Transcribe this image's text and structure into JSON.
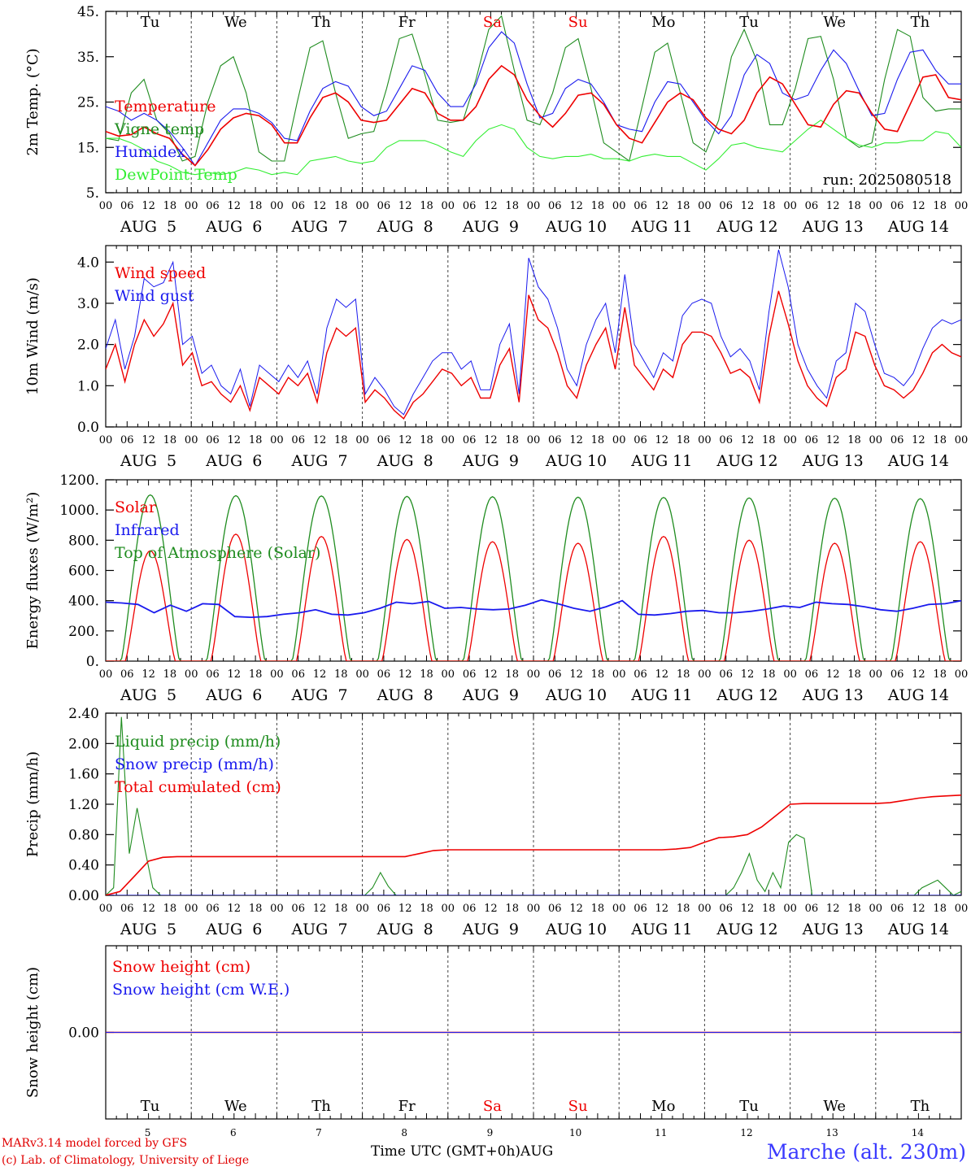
{
  "colors": {
    "red": "#ee0000",
    "green": "#1f8c1f",
    "blue": "#1a1aee",
    "light_green": "#33ee33",
    "station_blue": "#3a3aff"
  },
  "footer": {
    "credit1": "MARv3.14 model forced by GFS",
    "credit2": "(c) Lab. of Climatology, University of Liege",
    "time_label": "Time UTC (GMT+0h)AUG",
    "station": "Marche (alt. 230m)"
  },
  "chart_data": [
    {
      "type": "line",
      "ylabel": "2m Temp. (°C)",
      "ylim": [
        5,
        45
      ],
      "yticks": [
        "5.",
        "15.",
        "25.",
        "35.",
        "45."
      ],
      "annotation": "run: 2025080518",
      "weekdays": [
        "Tu",
        "We",
        "Th",
        "Fr",
        "Sa",
        "Su",
        "Mo",
        "Tu",
        "We",
        "Th"
      ],
      "weekend_days": [
        "Sa",
        "Su"
      ],
      "hour_ticks": [
        "00",
        "06",
        "12",
        "18"
      ],
      "date_labels": [
        "AUG  5",
        "AUG  6",
        "AUG  7",
        "AUG  8",
        "AUG  9",
        "AUG 10",
        "AUG 11",
        "AUG 12",
        "AUG 13",
        "AUG 14"
      ],
      "series": [
        {
          "name": "Temperature",
          "color": "#ee0000",
          "values": [
            18.5,
            17.5,
            17.8,
            19.5,
            18.0,
            17.0,
            13.5,
            11.0,
            14.5,
            19.0,
            21.5,
            22.5,
            22.0,
            20.0,
            16.0,
            16.0,
            21.5,
            26.0,
            27.0,
            25.0,
            21.0,
            20.5,
            21.0,
            24.5,
            28.0,
            27.0,
            22.5,
            21.0,
            21.0,
            24.0,
            30.0,
            33.0,
            31.0,
            25.5,
            22.0,
            19.5,
            22.5,
            26.5,
            27.0,
            24.5,
            20.0,
            17.0,
            16.0,
            20.5,
            25.0,
            27.0,
            25.5,
            21.5,
            19.0,
            18.0,
            21.0,
            27.0,
            30.5,
            29.0,
            24.5,
            20.0,
            19.5,
            24.5,
            27.5,
            27.0,
            22.5,
            19.0,
            18.5,
            24.5,
            30.5,
            31.0,
            26.0,
            25.5
          ]
        },
        {
          "name": "Vigne temp",
          "color": "#1f8c1f",
          "values": [
            17.0,
            16.5,
            27.0,
            30.0,
            21.0,
            18.0,
            12.0,
            13.0,
            25.0,
            33.0,
            35.0,
            27.0,
            14.0,
            12.0,
            12.0,
            25.0,
            37.0,
            38.5,
            27.0,
            17.0,
            18.0,
            18.5,
            28.0,
            39.0,
            40.0,
            31.0,
            21.0,
            20.5,
            21.0,
            30.0,
            41.0,
            44.0,
            32.0,
            21.0,
            20.0,
            27.0,
            37.0,
            39.0,
            28.0,
            16.0,
            14.0,
            12.0,
            24.0,
            36.0,
            38.0,
            27.0,
            16.0,
            14.0,
            21.0,
            35.0,
            41.0,
            34.0,
            20.0,
            20.0,
            28.0,
            39.0,
            39.5,
            30.0,
            17.0,
            15.0,
            16.0,
            30.0,
            41.0,
            39.5,
            26.0,
            23.0,
            23.5,
            23.5
          ]
        },
        {
          "name": "Humidex",
          "color": "#1a1aee",
          "values": [
            24.0,
            23.0,
            21.0,
            22.5,
            21.0,
            18.5,
            15.0,
            11.0,
            16.0,
            21.0,
            23.5,
            23.5,
            22.5,
            20.5,
            17.0,
            16.5,
            23.0,
            28.0,
            29.5,
            28.5,
            24.0,
            22.0,
            23.0,
            28.0,
            33.0,
            32.0,
            27.0,
            24.0,
            24.0,
            29.0,
            37.0,
            40.5,
            38.0,
            29.0,
            21.5,
            22.5,
            28.0,
            30.0,
            29.0,
            25.0,
            20.0,
            19.0,
            18.5,
            25.0,
            29.5,
            29.0,
            25.0,
            21.0,
            18.0,
            22.0,
            31.0,
            35.5,
            33.5,
            27.0,
            25.5,
            26.5,
            32.0,
            36.5,
            33.5,
            27.5,
            22.0,
            22.5,
            30.0,
            36.0,
            36.5,
            32.0,
            29.0,
            29.0
          ]
        },
        {
          "name": "DewPoint Temp",
          "color": "#33ee33",
          "values": [
            17.0,
            17.0,
            16.0,
            14.5,
            12.0,
            11.0,
            9.5,
            9.0,
            9.5,
            9.0,
            9.5,
            10.5,
            10.0,
            9.0,
            9.5,
            9.0,
            12.0,
            12.5,
            13.0,
            12.0,
            11.5,
            12.0,
            15.0,
            16.5,
            16.5,
            16.5,
            15.5,
            14.0,
            13.0,
            16.5,
            19.0,
            20.0,
            19.0,
            15.0,
            13.0,
            12.5,
            13.0,
            13.0,
            13.5,
            12.5,
            12.5,
            12.0,
            13.0,
            13.5,
            13.0,
            13.0,
            11.5,
            10.0,
            12.5,
            15.5,
            16.0,
            15.0,
            14.5,
            14.0,
            16.5,
            19.0,
            21.0,
            19.0,
            17.0,
            15.5,
            15.0,
            16.0,
            16.0,
            16.5,
            16.5,
            18.5,
            18.0,
            15.0
          ]
        }
      ]
    },
    {
      "type": "line",
      "ylabel": "10m Wind (m/s)",
      "ylim": [
        0,
        4.4
      ],
      "yticks": [
        "0.0",
        "1.0",
        "2.0",
        "3.0",
        "4.0"
      ],
      "hour_ticks": [
        "00",
        "06",
        "12",
        "18"
      ],
      "date_labels": [
        "AUG  5",
        "AUG  6",
        "AUG  7",
        "AUG  8",
        "AUG  9",
        "AUG 10",
        "AUG 11",
        "AUG 12",
        "AUG 13",
        "AUG 14"
      ],
      "series": [
        {
          "name": "Wind speed",
          "color": "#ee0000",
          "values": [
            1.4,
            2.0,
            1.1,
            2.0,
            2.6,
            2.2,
            2.5,
            3.0,
            1.5,
            1.8,
            1.0,
            1.1,
            0.8,
            0.6,
            1.0,
            0.4,
            1.2,
            1.0,
            0.8,
            1.2,
            1.0,
            1.3,
            0.6,
            1.8,
            2.4,
            2.2,
            2.4,
            0.6,
            0.9,
            0.7,
            0.4,
            0.2,
            0.6,
            0.8,
            1.1,
            1.4,
            1.3,
            1.0,
            1.2,
            0.7,
            0.7,
            1.5,
            1.9,
            0.6,
            3.2,
            2.6,
            2.4,
            1.8,
            1.0,
            0.7,
            1.5,
            2.0,
            2.4,
            1.4,
            2.9,
            1.5,
            1.2,
            0.9,
            1.4,
            1.2,
            2.0,
            2.3,
            2.3,
            2.2,
            1.8,
            1.3,
            1.4,
            1.2,
            0.6,
            2.2,
            3.3,
            2.5,
            1.6,
            1.0,
            0.7,
            0.5,
            1.2,
            1.4,
            2.3,
            2.2,
            1.5,
            1.0,
            0.9,
            0.7,
            0.9,
            1.3,
            1.8,
            2.0,
            1.8,
            1.7
          ]
        },
        {
          "name": "Wind gust",
          "color": "#1a1aee",
          "values": [
            1.9,
            2.6,
            1.4,
            2.2,
            3.6,
            3.4,
            3.5,
            4.0,
            2.0,
            2.2,
            1.3,
            1.5,
            1.0,
            0.8,
            1.4,
            0.5,
            1.5,
            1.3,
            1.1,
            1.5,
            1.2,
            1.6,
            0.8,
            2.4,
            3.1,
            2.9,
            3.1,
            0.8,
            1.2,
            0.9,
            0.5,
            0.3,
            0.8,
            1.2,
            1.6,
            1.8,
            1.8,
            1.4,
            1.6,
            0.9,
            0.9,
            2.0,
            2.5,
            0.8,
            4.1,
            3.4,
            3.1,
            2.4,
            1.4,
            1.0,
            2.0,
            2.6,
            3.0,
            1.8,
            3.7,
            2.0,
            1.6,
            1.2,
            1.8,
            1.6,
            2.7,
            3.0,
            3.1,
            3.0,
            2.2,
            1.7,
            1.9,
            1.6,
            0.9,
            2.8,
            4.3,
            3.4,
            2.0,
            1.4,
            1.0,
            0.7,
            1.6,
            1.8,
            3.0,
            2.8,
            2.0,
            1.3,
            1.2,
            1.0,
            1.3,
            1.9,
            2.4,
            2.6,
            2.5,
            2.6
          ]
        }
      ]
    },
    {
      "type": "line",
      "ylabel": "Energy fluxes (W/m²)",
      "ylim": [
        0,
        1200
      ],
      "yticks": [
        "0.",
        "200.",
        "400.",
        "600.",
        "800.",
        "1000.",
        "1200."
      ],
      "hour_ticks": [
        "00",
        "06",
        "12",
        "18"
      ],
      "date_labels": [
        "AUG  5",
        "AUG  6",
        "AUG  7",
        "AUG  8",
        "AUG  9",
        "AUG 10",
        "AUG 11",
        "AUG 12",
        "AUG 13",
        "AUG 14"
      ],
      "daily_peaks": {
        "solar": [
          730,
          840,
          825,
          805,
          790,
          780,
          825,
          800,
          780,
          790
        ],
        "toa_solar": [
          1100,
          1095,
          1093,
          1090,
          1088,
          1085,
          1083,
          1080,
          1078,
          1075
        ]
      },
      "series": [
        {
          "name": "Solar",
          "color": "#ee0000",
          "values": [
            0,
            0,
            0,
            80,
            500,
            780,
            300,
            760,
            450,
            70,
            0
          ]
        },
        {
          "name": "Infrared",
          "color": "#1a1aee",
          "values": [
            390,
            385,
            375,
            320,
            370,
            330,
            380,
            375,
            295,
            290,
            295,
            310,
            320,
            340,
            310,
            305,
            320,
            350,
            390,
            380,
            395,
            350,
            355,
            345,
            340,
            345,
            370,
            405,
            380,
            350,
            330,
            360,
            400,
            310,
            305,
            315,
            330,
            335,
            320,
            320,
            330,
            345,
            365,
            355,
            390,
            380,
            375,
            360,
            340,
            330,
            350,
            375,
            380,
            400
          ]
        },
        {
          "name": "Top of Atmosphere (Solar)",
          "color": "#1f8c1f",
          "values": [
            0,
            1100,
            0
          ]
        }
      ]
    },
    {
      "type": "line",
      "ylabel": "Precip (mm/h)",
      "ylim": [
        0,
        2.4
      ],
      "yticks": [
        "0.00",
        "0.40",
        "0.80",
        "1.20",
        "1.60",
        "2.00",
        "2.40"
      ],
      "hour_ticks": [
        "00",
        "06",
        "12",
        "18"
      ],
      "date_labels": [
        "AUG  5",
        "AUG  6",
        "AUG  7",
        "AUG  8",
        "AUG  9",
        "AUG 10",
        "AUG 11",
        "AUG 12",
        "AUG 13",
        "AUG 14"
      ],
      "series": [
        {
          "name": "Liquid precip (mm/h)",
          "color": "#1f8c1f",
          "values": [
            0,
            0.1,
            2.35,
            0.55,
            1.15,
            0.6,
            0.1,
            0,
            0,
            0,
            0,
            0,
            0,
            0,
            0,
            0,
            0,
            0,
            0,
            0,
            0,
            0,
            0,
            0,
            0,
            0,
            0,
            0,
            0,
            0,
            0,
            0,
            0,
            0,
            0.1,
            0.3,
            0.12,
            0,
            0,
            0,
            0,
            0,
            0,
            0,
            0,
            0,
            0,
            0,
            0,
            0,
            0,
            0,
            0,
            0,
            0,
            0,
            0,
            0,
            0,
            0,
            0,
            0,
            0,
            0,
            0,
            0,
            0,
            0,
            0,
            0,
            0,
            0,
            0,
            0,
            0,
            0,
            0,
            0,
            0,
            0,
            0.1,
            0.3,
            0.55,
            0.2,
            0.05,
            0.3,
            0.1,
            0.7,
            0.8,
            0.75,
            0,
            0,
            0,
            0,
            0,
            0,
            0,
            0,
            0,
            0,
            0,
            0,
            0,
            0,
            0.1,
            0.15,
            0.2,
            0.1,
            0,
            0.05
          ]
        },
        {
          "name": "Snow precip (mm/h)",
          "color": "#1a1aee",
          "values": [
            0,
            0,
            0,
            0,
            0,
            0,
            0,
            0,
            0,
            0,
            0
          ]
        },
        {
          "name": "Total cumulated (cm)",
          "color": "#ee0000",
          "values": [
            0,
            0.05,
            0.25,
            0.45,
            0.5,
            0.51,
            0.51,
            0.51,
            0.51,
            0.51,
            0.51,
            0.51,
            0.51,
            0.51,
            0.51,
            0.51,
            0.51,
            0.51,
            0.51,
            0.51,
            0.51,
            0.51,
            0.55,
            0.59,
            0.6,
            0.6,
            0.6,
            0.6,
            0.6,
            0.6,
            0.6,
            0.6,
            0.6,
            0.6,
            0.6,
            0.6,
            0.6,
            0.6,
            0.6,
            0.6,
            0.61,
            0.63,
            0.7,
            0.76,
            0.77,
            0.8,
            0.9,
            1.05,
            1.2,
            1.21,
            1.21,
            1.21,
            1.21,
            1.21,
            1.21,
            1.22,
            1.25,
            1.28,
            1.3,
            1.31,
            1.32
          ]
        }
      ]
    },
    {
      "type": "line",
      "ylabel": "Snow height (cm)",
      "ylim": [
        -1,
        1
      ],
      "yticks": [
        "0.00"
      ],
      "weekdays": [
        "Tu",
        "We",
        "Th",
        "Fr",
        "Sa",
        "Su",
        "Mo",
        "Tu",
        "We",
        "Th"
      ],
      "day_numbers": [
        "5",
        "6",
        "7",
        "8",
        "9",
        "10",
        "11",
        "12",
        "13",
        "14"
      ],
      "series": [
        {
          "name": "Snow height (cm)",
          "color": "#ee0000",
          "values": [
            0,
            0
          ]
        },
        {
          "name": "Snow height (cm W.E.)",
          "color": "#1a1aee",
          "values": [
            0,
            0
          ]
        }
      ]
    }
  ]
}
